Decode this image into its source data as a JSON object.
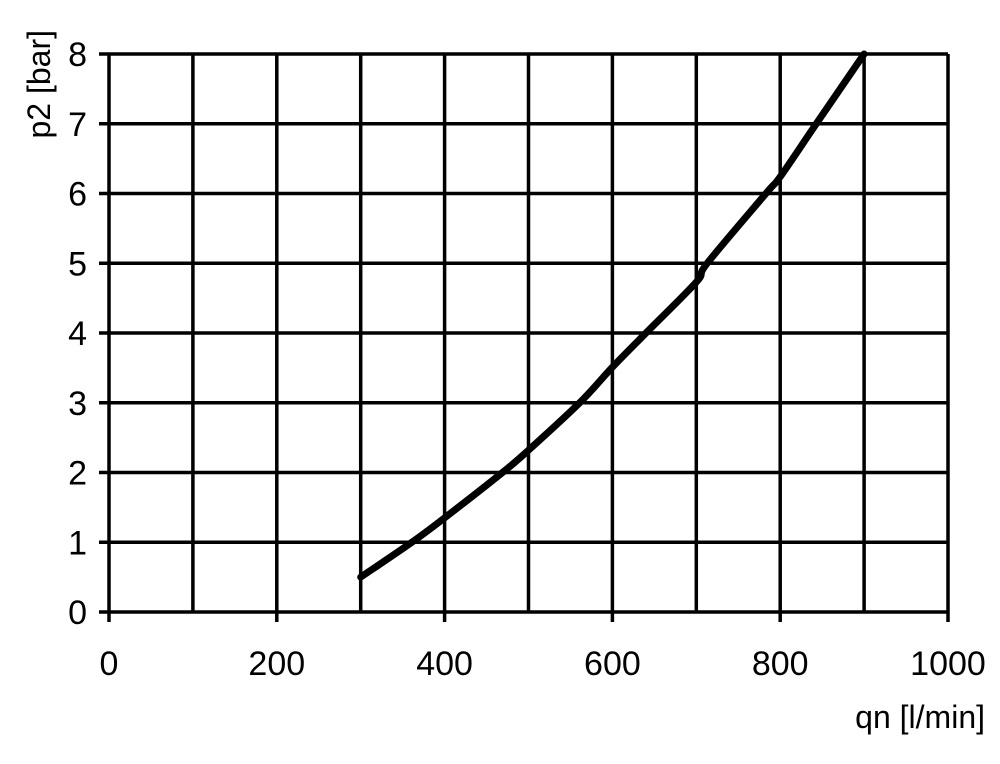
{
  "chart_data": {
    "type": "line",
    "title": "",
    "xlabel": "qn [l/min]",
    "ylabel": "p2 [bar]",
    "xlim": [
      0,
      1000
    ],
    "ylim": [
      0,
      8
    ],
    "grid": true,
    "x_ticks": [
      "0",
      "200",
      "400",
      "600",
      "800",
      "1000"
    ],
    "y_ticks": [
      "0",
      "1",
      "2",
      "3",
      "4",
      "5",
      "6",
      "7",
      "8"
    ],
    "series": [
      {
        "color": "#000000",
        "x": [
          300,
          361,
          400,
          469,
          500,
          561,
          600,
          640,
          700,
          713,
          783,
          800,
          843,
          900
        ],
        "y": [
          0.5,
          1.0,
          1.35,
          2.0,
          2.32,
          3.0,
          3.51,
          4.0,
          4.73,
          5.0,
          6.0,
          6.24,
          7.0,
          8.0
        ]
      }
    ]
  }
}
